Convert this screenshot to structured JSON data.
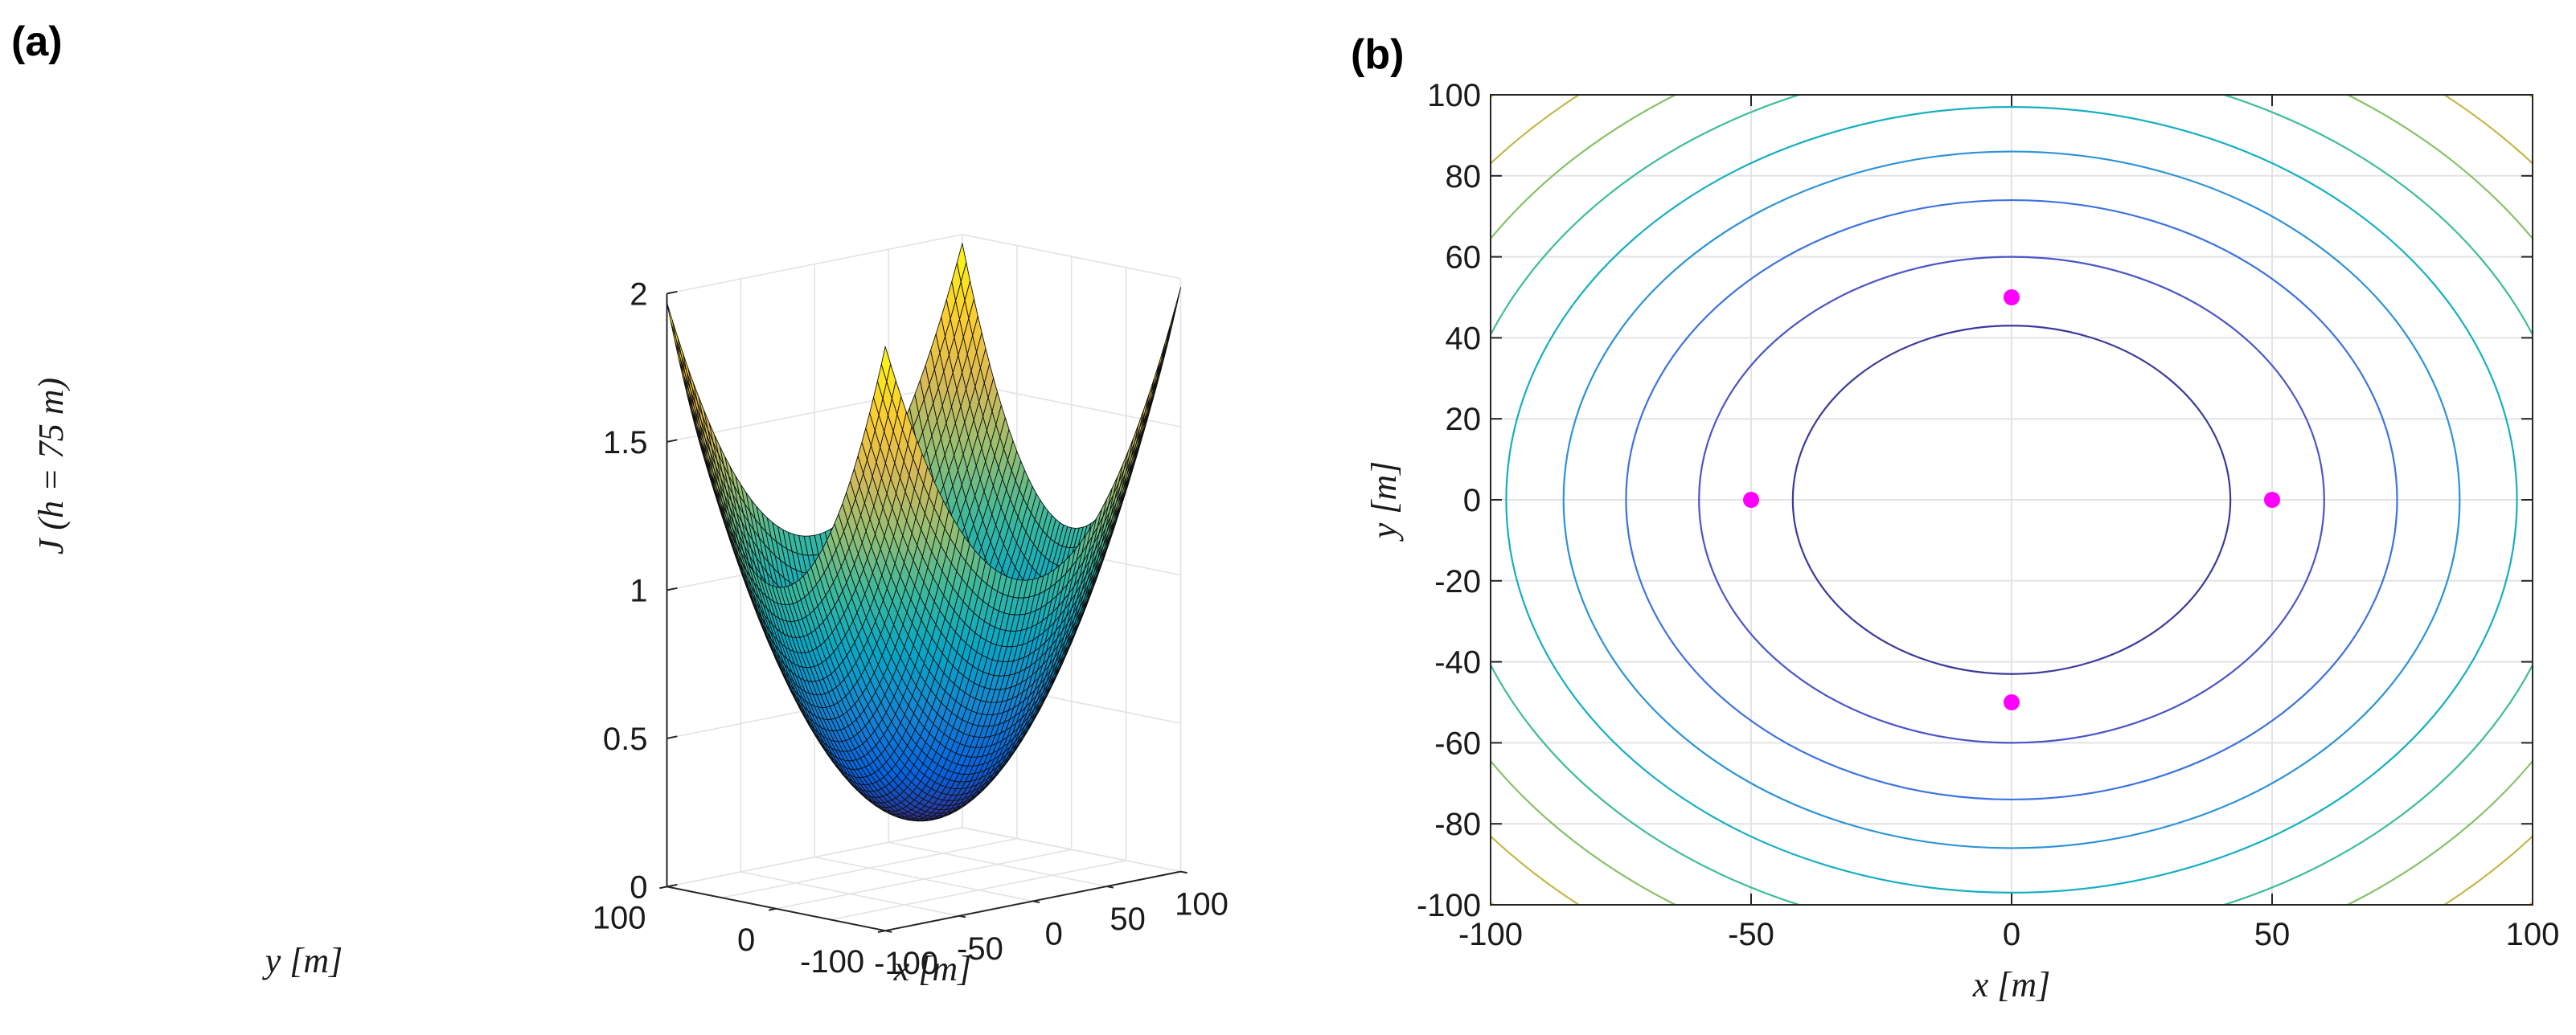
{
  "chart_data": [
    {
      "panel": "(a)",
      "type": "surface",
      "description_of_function": "bowl-shaped surface, minimum near center, higher at corners",
      "xlabel": "x [m]",
      "ylabel": "y [m]",
      "zlabel": "J (h = 75 m)",
      "xlim": [
        -100,
        100
      ],
      "ylim": [
        -100,
        100
      ],
      "zlim": [
        0,
        2
      ],
      "x_ticks": [
        "-100",
        "-50",
        "0",
        "50",
        "100"
      ],
      "y_ticks": [
        "100",
        "0",
        "-100"
      ],
      "z_ticks": [
        "0",
        "0.5",
        "1",
        "1.5",
        "2"
      ],
      "z_min": 0.2,
      "z_corner_max": 1.97,
      "colormap": "parula",
      "grid": true
    },
    {
      "panel": "(b)",
      "type": "contour",
      "xlabel": "x [m]",
      "ylabel": "y [m]",
      "xlim": [
        -100,
        100
      ],
      "ylim": [
        -100,
        100
      ],
      "x_ticks": [
        "-100",
        "-50",
        "0",
        "50",
        "100"
      ],
      "y_ticks": [
        "100",
        "80",
        "60",
        "40",
        "20",
        "0",
        "-20",
        "-40",
        "-60",
        "-80",
        "-100"
      ],
      "contour_radii_x": [
        42,
        60,
        74,
        86,
        97,
        108,
        119,
        130,
        141
      ],
      "contour_radii_y": [
        43,
        60,
        74,
        86,
        97,
        108,
        119,
        130,
        141
      ],
      "contour_colors": [
        "#3c3a9c",
        "#4a55c9",
        "#3d73e0",
        "#2c93d8",
        "#15afc2",
        "#3ebd9a",
        "#86c26a",
        "#c3b84a",
        "#f2c83a"
      ],
      "markers": [
        {
          "x": 0,
          "y": 50
        },
        {
          "x": -50,
          "y": 0
        },
        {
          "x": 50,
          "y": 0
        },
        {
          "x": 0,
          "y": -50
        }
      ],
      "marker_color": "#ff00ff",
      "grid": true
    }
  ]
}
